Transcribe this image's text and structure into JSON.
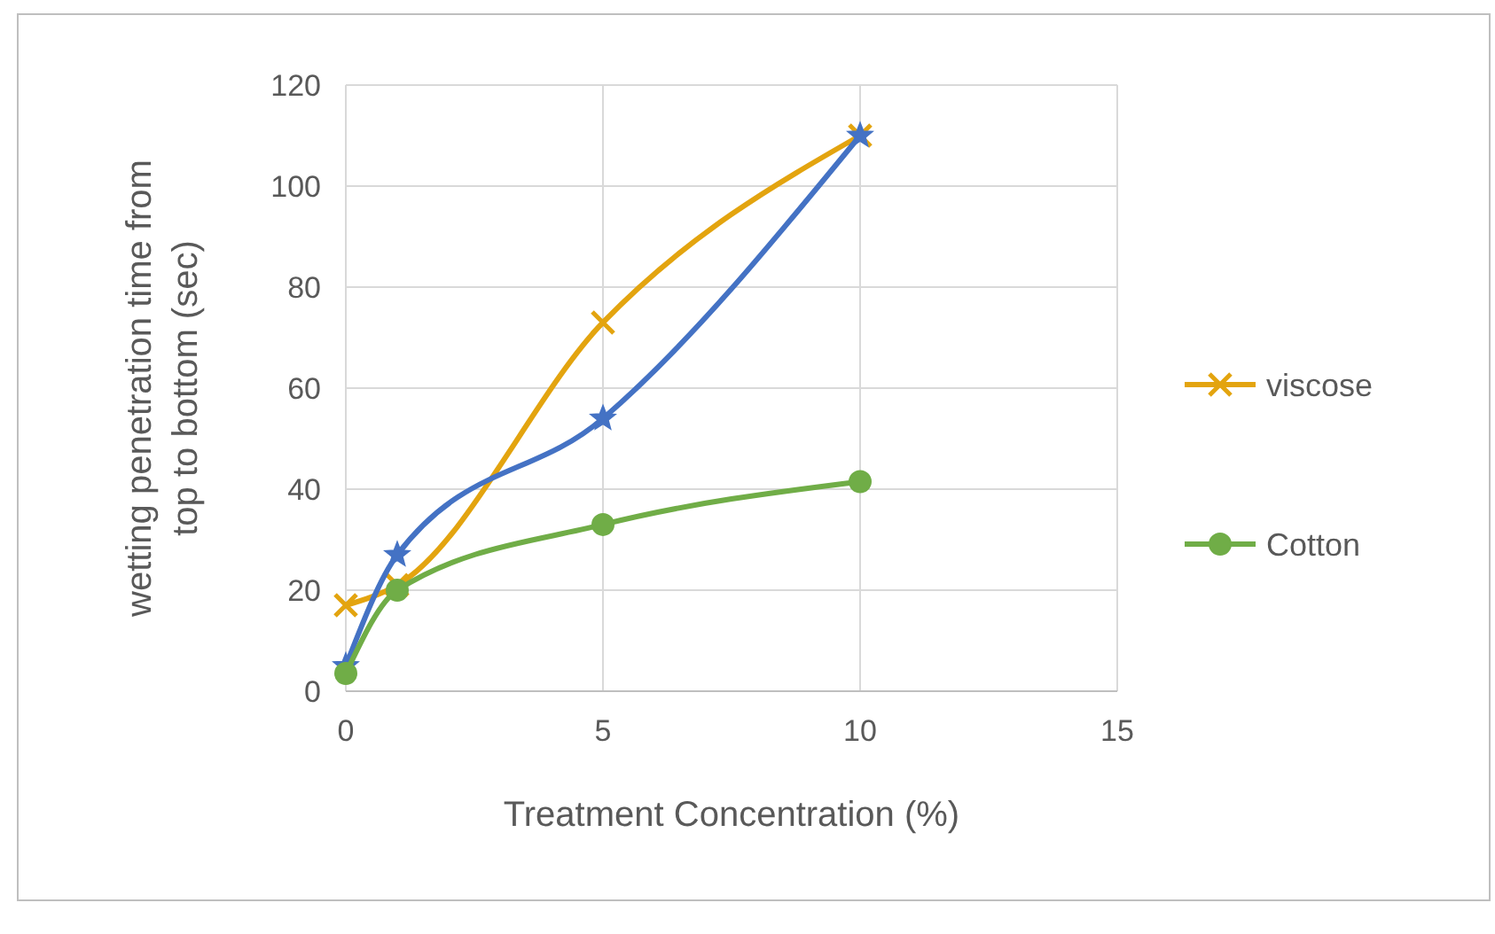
{
  "chart_data": {
    "type": "line",
    "xlabel": "Treatment Concentration (%)",
    "ylabel": "wetting penetration time from top to bottom  (sec)",
    "xlim": [
      0,
      15
    ],
    "xticks": [
      0,
      5,
      10,
      15
    ],
    "ylim": [
      0,
      120
    ],
    "yticks": [
      0,
      20,
      40,
      60,
      80,
      100,
      120
    ],
    "grid": true,
    "legend": "right",
    "series": [
      {
        "name": "viscose",
        "color": "#e3a40f",
        "marker": "cross",
        "x": [
          0,
          1,
          5,
          10
        ],
        "values": [
          17,
          21,
          73,
          110
        ]
      },
      {
        "color": "#4472c4",
        "marker": "star",
        "x": [
          0,
          1,
          5,
          10
        ],
        "values": [
          5,
          27,
          54,
          110
        ]
      },
      {
        "name": "Cotton",
        "color": "#70ad47",
        "marker": "circle",
        "x": [
          0,
          1,
          5,
          10
        ],
        "values": [
          3.5,
          20,
          33,
          41.5
        ]
      }
    ]
  }
}
